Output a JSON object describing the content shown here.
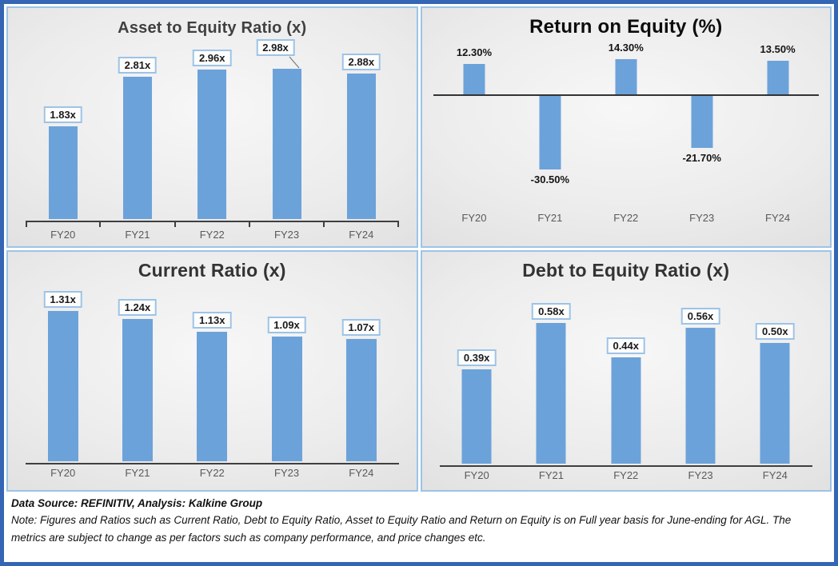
{
  "colors": {
    "bar": "#6CA2DA",
    "label_box_border": "#9DC3E6",
    "panel_border": "#9DC3E6",
    "outer_border": "#3566B5",
    "axis": "#3F3F3F",
    "category_text": "#595959"
  },
  "footer": {
    "source": "Data Source: REFINITIV, Analysis: Kalkine Group",
    "note": "Note: Figures and Ratios such as Current Ratio, Debt to Equity Ratio, Asset to Equity Ratio and Return on Equity is on Full year basis for June-ending for AGL. The metrics are subject to change as per factors such as company performance, and price changes etc."
  },
  "chart_data": [
    {
      "type": "bar",
      "title": "Asset to Equity Ratio (x)",
      "categories": [
        "FY20",
        "FY21",
        "FY22",
        "FY23",
        "FY24"
      ],
      "values": [
        1.83,
        2.81,
        2.96,
        2.98,
        2.88
      ],
      "labels": [
        "1.83x",
        "2.81x",
        "2.96x",
        "2.98x",
        "2.88x"
      ],
      "label_style": "boxed",
      "ylim": [
        0,
        3.4
      ],
      "axis_ticks": true,
      "zero_line": false,
      "callout_index": 3,
      "grid": false,
      "legend": false
    },
    {
      "type": "bar",
      "title": "Return on Equity (%)",
      "categories": [
        "FY20",
        "FY21",
        "FY22",
        "FY23",
        "FY24"
      ],
      "values": [
        12.3,
        -30.5,
        14.3,
        -21.7,
        13.5
      ],
      "labels": [
        "12.30%",
        "-30.50%",
        "14.30%",
        "-21.70%",
        "13.50%"
      ],
      "label_style": "plain",
      "ylim": [
        -40,
        20
      ],
      "axis_ticks": false,
      "zero_line": true,
      "callout_index": null,
      "grid": false,
      "legend": false
    },
    {
      "type": "bar",
      "title": "Current Ratio (x)",
      "categories": [
        "FY20",
        "FY21",
        "FY22",
        "FY23",
        "FY24"
      ],
      "values": [
        1.31,
        1.24,
        1.13,
        1.09,
        1.07
      ],
      "labels": [
        "1.31x",
        "1.24x",
        "1.13x",
        "1.09x",
        "1.07x"
      ],
      "label_style": "boxed",
      "ylim": [
        0,
        1.5
      ],
      "axis_ticks": false,
      "zero_line": false,
      "callout_index": null,
      "grid": false,
      "legend": false
    },
    {
      "type": "bar",
      "title": "Debt to Equity Ratio (x)",
      "categories": [
        "FY20",
        "FY21",
        "FY22",
        "FY23",
        "FY24"
      ],
      "values": [
        0.39,
        0.58,
        0.44,
        0.56,
        0.5
      ],
      "labels": [
        "0.39x",
        "0.58x",
        "0.44x",
        "0.56x",
        "0.50x"
      ],
      "label_style": "boxed",
      "ylim": [
        0,
        0.7
      ],
      "axis_ticks": false,
      "zero_line": false,
      "callout_index": null,
      "grid": false,
      "legend": false
    }
  ]
}
